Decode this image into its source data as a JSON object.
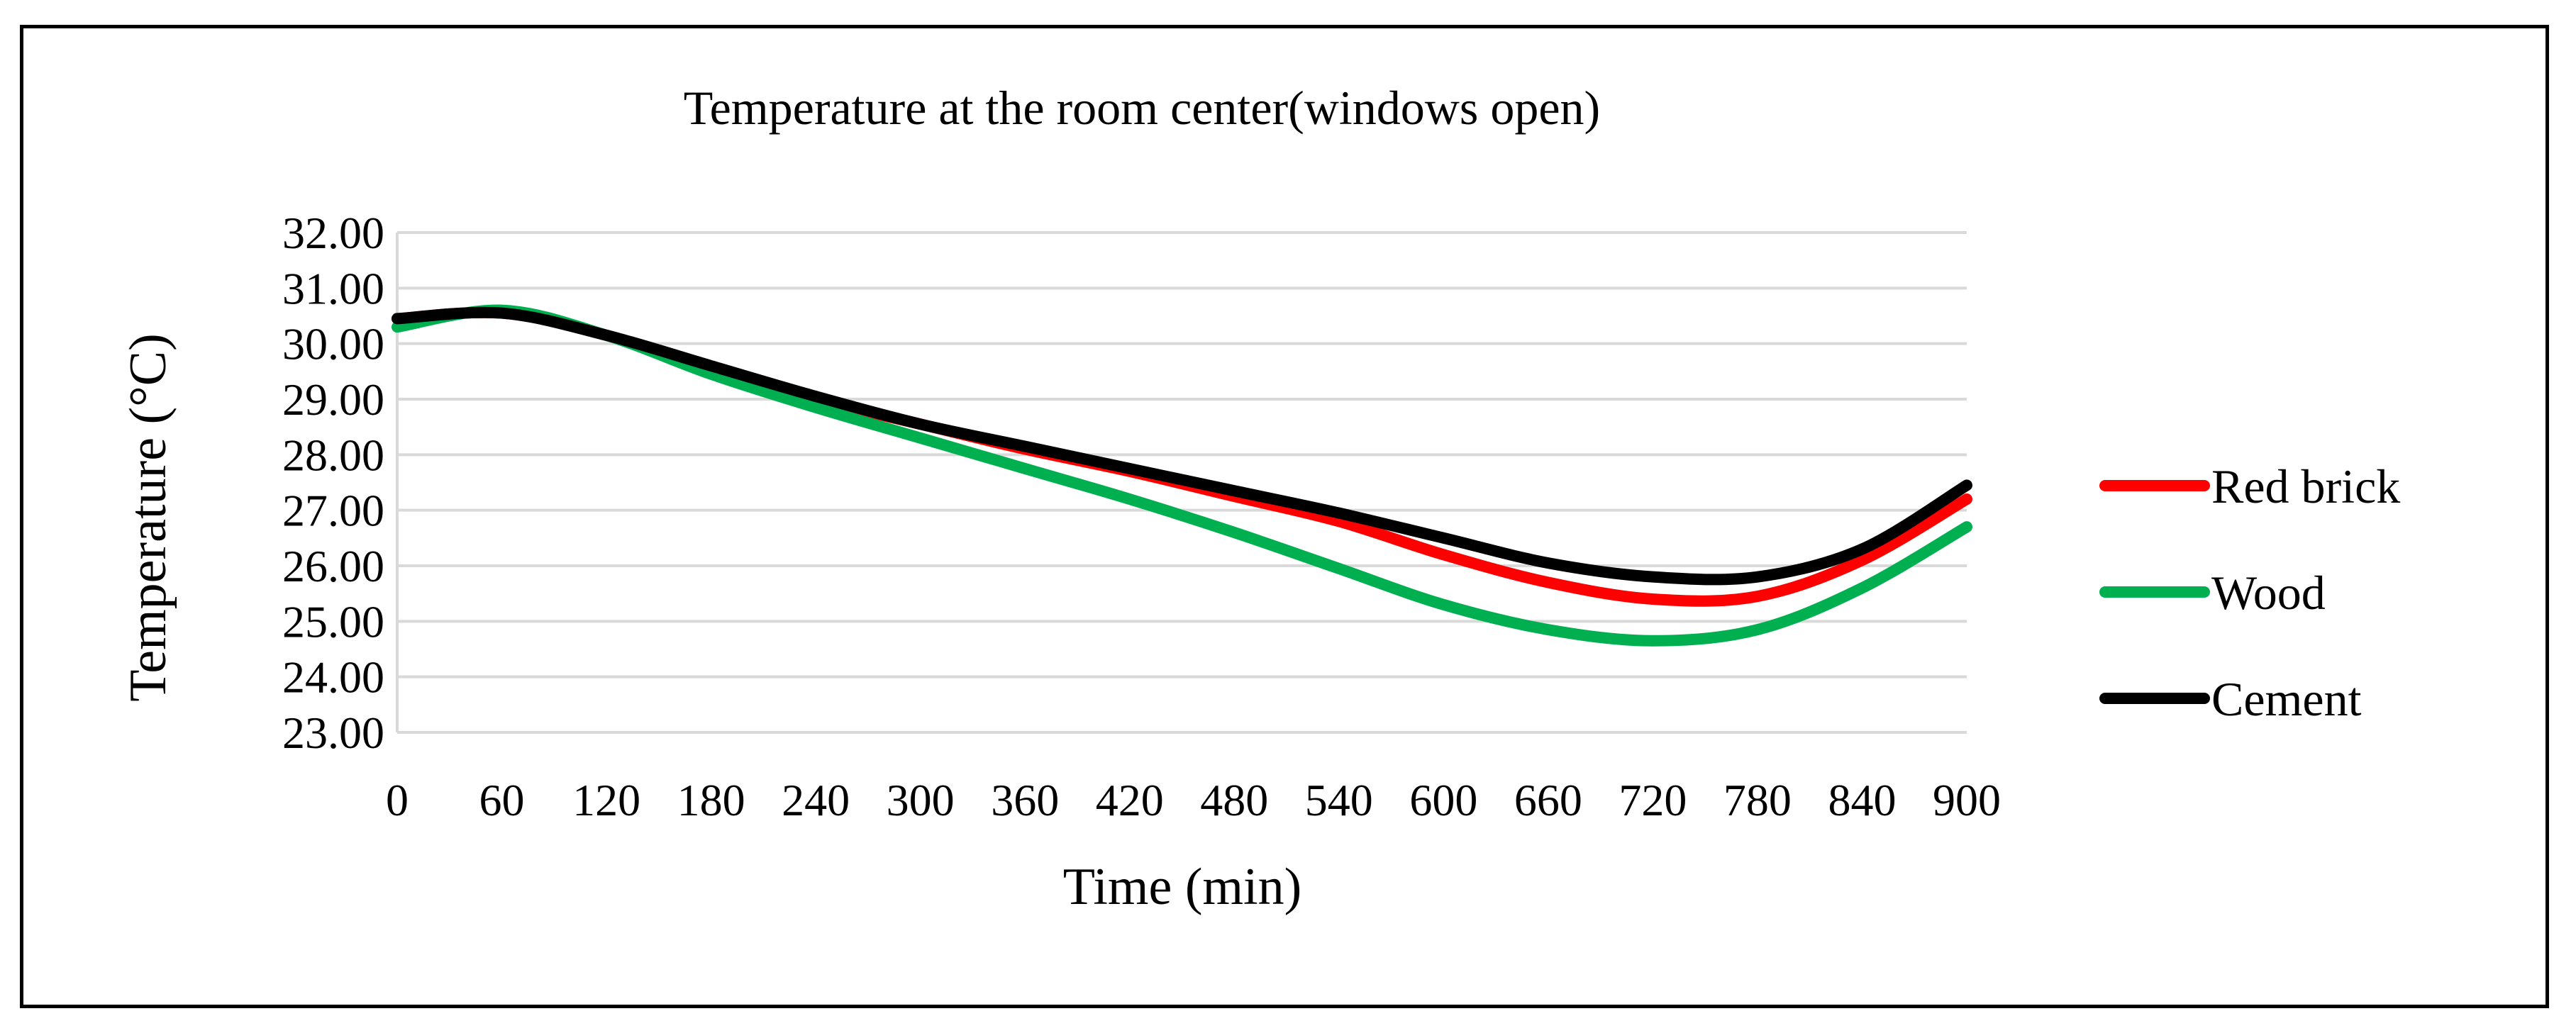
{
  "chart_data": {
    "type": "line",
    "title": "Temperature at the room center(windows open)",
    "xlabel": "Time (min)",
    "ylabel": "Temperature (°C)",
    "xlim": [
      0,
      900
    ],
    "ylim": [
      23,
      32
    ],
    "x_ticks": [
      0,
      60,
      120,
      180,
      240,
      300,
      360,
      420,
      480,
      540,
      600,
      660,
      720,
      780,
      840,
      900
    ],
    "x_tick_labels": [
      "0",
      "60",
      "120",
      "180",
      "240",
      "300",
      "360",
      "420",
      "480",
      "540",
      "600",
      "660",
      "720",
      "780",
      "840",
      "900"
    ],
    "y_ticks": [
      23,
      24,
      25,
      26,
      27,
      28,
      29,
      30,
      31,
      32
    ],
    "y_tick_labels": [
      "23.00",
      "24.00",
      "25.00",
      "26.00",
      "27.00",
      "28.00",
      "29.00",
      "30.00",
      "31.00",
      "32.00"
    ],
    "grid": "horizontal",
    "legend_position": "right",
    "x": [
      0,
      60,
      120,
      180,
      240,
      300,
      360,
      420,
      480,
      540,
      600,
      660,
      720,
      780,
      840,
      900
    ],
    "series": [
      {
        "name": "Red brick",
        "color": "#ff0000",
        "values": [
          30.45,
          30.55,
          30.15,
          29.55,
          29.0,
          28.55,
          28.1,
          27.7,
          27.25,
          26.8,
          26.2,
          25.7,
          25.4,
          25.45,
          26.1,
          27.2
        ]
      },
      {
        "name": "Wood",
        "color": "#00b050",
        "values": [
          30.3,
          30.6,
          30.15,
          29.45,
          28.85,
          28.3,
          27.75,
          27.2,
          26.6,
          25.95,
          25.3,
          24.85,
          24.65,
          24.85,
          25.6,
          26.7
        ]
      },
      {
        "name": "Cement",
        "color": "#000000",
        "values": [
          30.45,
          30.55,
          30.15,
          29.6,
          29.05,
          28.55,
          28.15,
          27.75,
          27.35,
          26.95,
          26.5,
          26.05,
          25.8,
          25.8,
          26.3,
          27.45
        ]
      }
    ]
  }
}
